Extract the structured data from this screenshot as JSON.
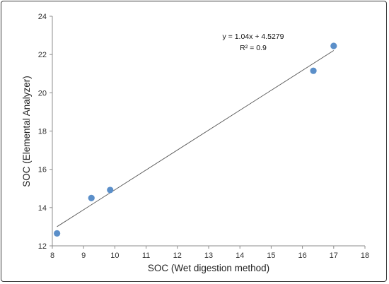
{
  "chart_data": {
    "type": "scatter",
    "title": "",
    "xlabel": "SOC (Wet digestion method)",
    "ylabel": "SOC (Elemental Analyzer)",
    "xlim": [
      8,
      18
    ],
    "ylim": [
      12,
      24
    ],
    "xticks": [
      "8",
      "9",
      "10",
      "11",
      "12",
      "13",
      "14",
      "15",
      "16",
      "17",
      "18"
    ],
    "yticks": [
      "12",
      "14",
      "16",
      "18",
      "20",
      "22",
      "24"
    ],
    "grid": false,
    "points": [
      {
        "x": 8.15,
        "y": 12.65
      },
      {
        "x": 9.25,
        "y": 14.5
      },
      {
        "x": 9.85,
        "y": 14.92
      },
      {
        "x": 16.35,
        "y": 21.15
      },
      {
        "x": 17.0,
        "y": 22.45
      }
    ],
    "trendline": {
      "type": "linear",
      "slope": 1.04,
      "intercept": 4.5279,
      "equation": "y = 1.04x + 4.5279",
      "r_squared": "R² = 0.9"
    },
    "marker_color": "#5b8fc9",
    "line_color": "#555555"
  }
}
